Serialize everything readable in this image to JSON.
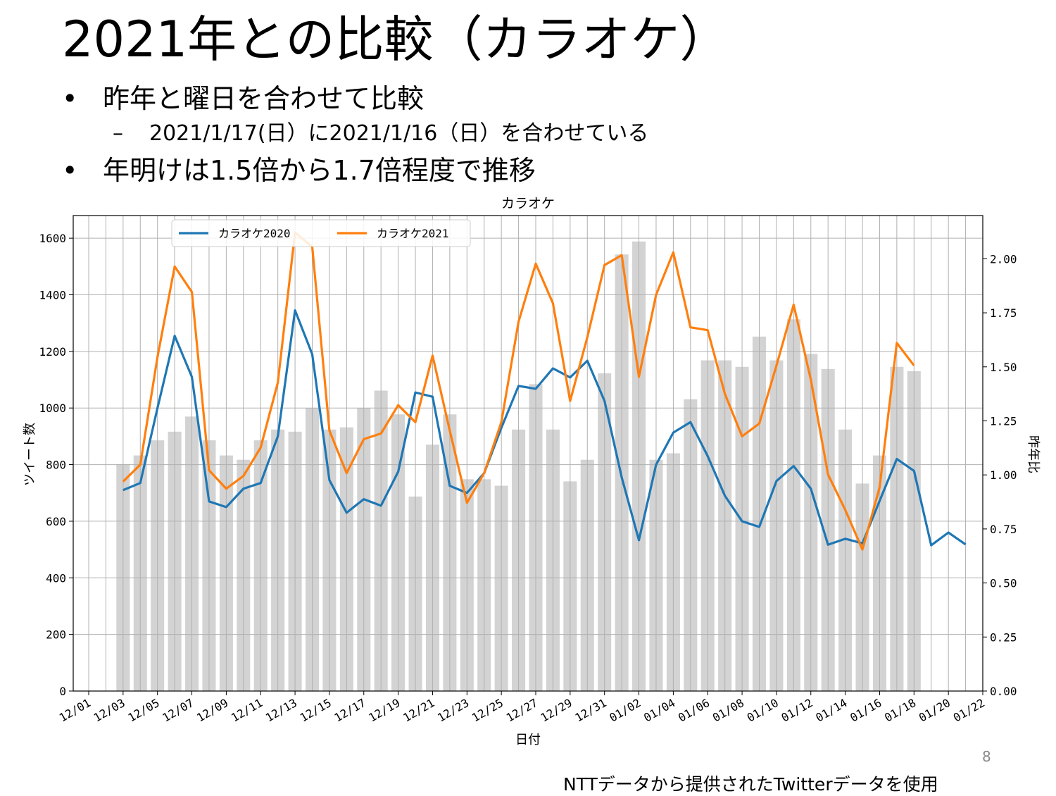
{
  "slide": {
    "title": "2021年との比較（カラオケ）",
    "bullets": [
      {
        "text": "昨年と曜日を合わせて比較",
        "marker": "•"
      },
      {
        "text": "2021/1/17(日）に2021/1/16（日）を合わせている",
        "marker": "–"
      },
      {
        "text": "年明けは1.5倍から1.7倍程度で推移",
        "marker": "•"
      }
    ],
    "page_number": "8",
    "footer": "NTTデータから提供されたTwitterデータを使用"
  },
  "colors": {
    "series2020": "#1f77b4",
    "series2021": "#ff7f0e",
    "bars": "#d3d3d3",
    "grid": "#b0b0b0"
  },
  "chart_data": {
    "type": "line",
    "title": "カラオケ",
    "xlabel": "日付",
    "ylabel": "ツイート数",
    "y2label": "昨年比",
    "ylim": [
      0,
      1680
    ],
    "y2lim": [
      0,
      2.2
    ],
    "yticks": [
      "0",
      "200",
      "400",
      "600",
      "800",
      "1000",
      "1200",
      "1400",
      "1600"
    ],
    "y2ticks": [
      "0.00",
      "0.25",
      "0.50",
      "0.75",
      "1.00",
      "1.25",
      "1.50",
      "1.75",
      "2.00"
    ],
    "xticks": [
      "12/01",
      "12/03",
      "12/05",
      "12/07",
      "12/09",
      "12/11",
      "12/13",
      "12/15",
      "12/17",
      "12/19",
      "12/21",
      "12/23",
      "12/25",
      "12/27",
      "12/29",
      "12/31",
      "01/02",
      "01/04",
      "01/06",
      "01/08",
      "01/10",
      "01/12",
      "01/14",
      "01/16",
      "01/18",
      "01/20",
      "01/22"
    ],
    "legend": {
      "placement": "upper-center"
    },
    "grid": true,
    "series": [
      {
        "name": "カラオケ2020",
        "axis": "left",
        "values": [
          710,
          735,
          1000,
          1255,
          1110,
          670,
          650,
          715,
          735,
          900,
          1345,
          1190,
          745,
          630,
          678,
          655,
          775,
          1055,
          1040,
          725,
          700,
          770,
          930,
          1078,
          1068,
          1140,
          1108,
          1167,
          1025,
          755,
          533,
          800,
          913,
          950,
          830,
          690,
          600,
          580,
          742,
          795,
          715,
          517,
          538,
          522,
          672,
          820,
          778,
          515,
          560,
          518
        ]
      },
      {
        "name": "カラオケ2021",
        "axis": "left",
        "values": [
          740,
          800,
          1180,
          1500,
          1410,
          780,
          715,
          760,
          860,
          1090,
          1620,
          1570,
          920,
          770,
          890,
          910,
          1010,
          950,
          1185,
          920,
          665,
          770,
          950,
          1305,
          1510,
          1370,
          1025,
          1250,
          1505,
          1540,
          1110,
          1400,
          1550,
          1285,
          1275,
          1050,
          900,
          945,
          1150,
          1365,
          1100,
          765,
          640,
          500,
          720,
          1230,
          1150
        ]
      },
      {
        "name": "昨年比",
        "axis": "right",
        "type": "bar",
        "values": [
          1.05,
          1.09,
          1.16,
          1.2,
          1.27,
          1.16,
          1.09,
          1.07,
          1.16,
          1.21,
          1.2,
          1.31,
          1.21,
          1.22,
          1.31,
          1.39,
          1.28,
          0.9,
          1.14,
          1.28,
          0.98,
          0.98,
          0.95,
          1.21,
          1.42,
          1.21,
          0.97,
          1.07,
          1.47,
          2.02,
          2.08,
          1.07,
          1.1,
          1.35,
          1.53,
          1.53,
          1.5,
          1.64,
          1.53,
          1.72,
          1.56,
          1.49,
          1.21,
          0.96,
          1.09,
          1.5,
          1.48
        ]
      }
    ]
  }
}
